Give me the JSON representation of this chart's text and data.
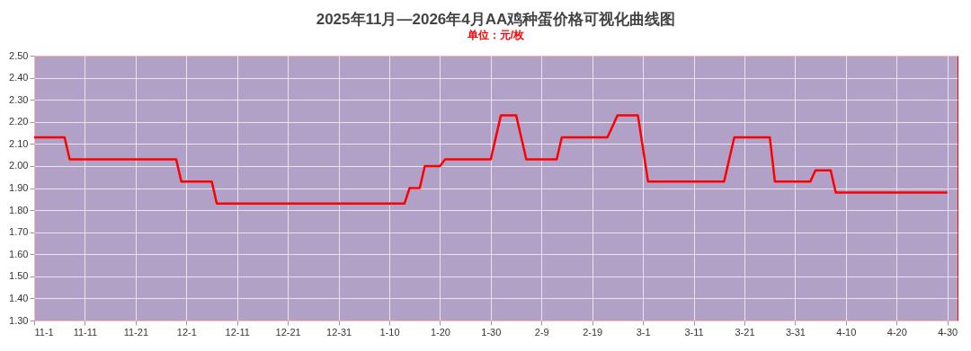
{
  "chart_data": {
    "type": "line",
    "title": "2025年11月—2026年4月AA鸡种蛋价格可视化曲线图",
    "subtitle": "单位：元/枚",
    "x": [
      "2025-11-01",
      "2025-11-07",
      "2025-11-08",
      "2025-11-29",
      "2025-11-30",
      "2025-12-06",
      "2025-12-07",
      "2026-01-13",
      "2026-01-14",
      "2026-01-16",
      "2026-01-17",
      "2026-01-20",
      "2026-01-21",
      "2026-01-30",
      "2026-02-01",
      "2026-02-04",
      "2026-02-06",
      "2026-02-12",
      "2026-02-13",
      "2026-02-22",
      "2026-02-24",
      "2026-02-28",
      "2026-03-02",
      "2026-03-17",
      "2026-03-19",
      "2026-03-26",
      "2026-03-27",
      "2026-04-03",
      "2026-04-04",
      "2026-04-07",
      "2026-04-08",
      "2026-04-30"
    ],
    "series": [
      {
        "color": "#ff0000",
        "values": [
          2.13,
          2.13,
          2.03,
          2.03,
          1.93,
          1.93,
          1.83,
          1.83,
          1.9,
          1.9,
          2.0,
          2.0,
          2.03,
          2.03,
          2.23,
          2.23,
          2.03,
          2.03,
          2.13,
          2.13,
          2.23,
          2.23,
          1.93,
          1.93,
          2.13,
          2.13,
          1.93,
          1.93,
          1.98,
          1.98,
          1.88,
          1.88
        ]
      }
    ],
    "xlim": [
      "2025-11-01",
      "2026-05-02"
    ],
    "xticks": [
      {
        "value": "2025-11-01",
        "label": "11-1"
      },
      {
        "value": "2025-11-11",
        "label": "11-11"
      },
      {
        "value": "2025-11-21",
        "label": "11-21"
      },
      {
        "value": "2025-12-01",
        "label": "12-1"
      },
      {
        "value": "2025-12-11",
        "label": "12-11"
      },
      {
        "value": "2025-12-21",
        "label": "12-21"
      },
      {
        "value": "2025-12-31",
        "label": "12-31"
      },
      {
        "value": "2026-01-10",
        "label": "1-10"
      },
      {
        "value": "2026-01-20",
        "label": "1-20"
      },
      {
        "value": "2026-01-30",
        "label": "1-30"
      },
      {
        "value": "2026-02-09",
        "label": "2-9"
      },
      {
        "value": "2026-02-19",
        "label": "2-19"
      },
      {
        "value": "2026-03-01",
        "label": "3-1"
      },
      {
        "value": "2026-03-11",
        "label": "3-11"
      },
      {
        "value": "2026-03-21",
        "label": "3-21"
      },
      {
        "value": "2026-03-31",
        "label": "3-31"
      },
      {
        "value": "2026-04-10",
        "label": "4-10"
      },
      {
        "value": "2026-04-20",
        "label": "4-20"
      },
      {
        "value": "2026-04-30",
        "label": "4-30"
      }
    ],
    "ylim": [
      1.3,
      2.5
    ],
    "yticks": [
      {
        "value": 1.3,
        "label": "1.30"
      },
      {
        "value": 1.4,
        "label": "1.40"
      },
      {
        "value": 1.5,
        "label": "1.50"
      },
      {
        "value": 1.6,
        "label": "1.60"
      },
      {
        "value": 1.7,
        "label": "1.70"
      },
      {
        "value": 1.8,
        "label": "1.80"
      },
      {
        "value": 1.9,
        "label": "1.90"
      },
      {
        "value": 2.0,
        "label": "2.00"
      },
      {
        "value": 2.1,
        "label": "2.10"
      },
      {
        "value": 2.2,
        "label": "2.20"
      },
      {
        "value": 2.3,
        "label": "2.30"
      },
      {
        "value": 2.4,
        "label": "2.40"
      },
      {
        "value": 2.5,
        "label": "2.50"
      }
    ],
    "grid": true,
    "marker": "none",
    "line_style": "solid"
  }
}
